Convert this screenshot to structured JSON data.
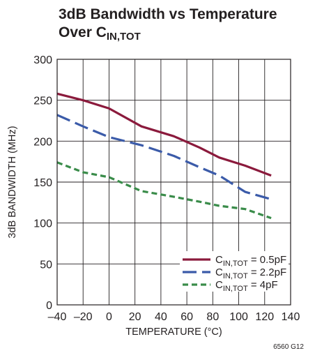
{
  "title": {
    "line1": "3dB Bandwidth vs Temperature",
    "line2_prefix": "Over C",
    "line2_sub": "IN,TOT"
  },
  "chart_data": {
    "type": "line",
    "title": "3dB Bandwidth vs Temperature Over CIN,TOT",
    "xlabel": "TEMPERATURE (°C)",
    "ylabel": "3dB BANDWIDTH (MHz)",
    "xlim": [
      -40,
      140
    ],
    "ylim": [
      0,
      300
    ],
    "xticks": [
      -40,
      -20,
      0,
      20,
      40,
      60,
      80,
      100,
      120,
      140
    ],
    "yticks": [
      0,
      50,
      100,
      150,
      200,
      250,
      300
    ],
    "xtick_labels": [
      "–40",
      "–20",
      "0",
      "20",
      "40",
      "60",
      "80",
      "100",
      "120",
      "140"
    ],
    "ytick_labels": [
      "0",
      "50",
      "100",
      "150",
      "200",
      "250",
      "300"
    ],
    "grid": true,
    "legend_position": "bottom-right",
    "series": [
      {
        "name": "CIN,TOT = 0.5pF",
        "label_prefix": "C",
        "label_sub": "IN,TOT",
        "label_suffix": " = 0.5pF",
        "color": "#8b1a3c",
        "dash": "solid",
        "x": [
          -40,
          -20,
          0,
          25,
          50,
          70,
          85,
          105,
          125
        ],
        "y": [
          258,
          250,
          240,
          218,
          206,
          192,
          180,
          170,
          158
        ]
      },
      {
        "name": "CIN,TOT = 2.2pF",
        "label_prefix": "C",
        "label_sub": "IN,TOT",
        "label_suffix": " = 2.2pF",
        "color": "#3b5ba9",
        "dash": "longdash",
        "x": [
          -40,
          -20,
          0,
          25,
          50,
          70,
          85,
          105,
          125
        ],
        "y": [
          232,
          218,
          205,
          195,
          182,
          168,
          158,
          138,
          129
        ]
      },
      {
        "name": "CIN,TOT = 4pF",
        "label_prefix": "C",
        "label_sub": "IN,TOT",
        "label_suffix": " = 4pF",
        "color": "#3a8c4a",
        "dash": "shortdash",
        "x": [
          -40,
          -20,
          0,
          25,
          50,
          70,
          85,
          105,
          125
        ],
        "y": [
          174,
          162,
          156,
          139,
          132,
          126,
          121,
          117,
          106
        ]
      }
    ]
  },
  "figure_code": "6560 G12"
}
